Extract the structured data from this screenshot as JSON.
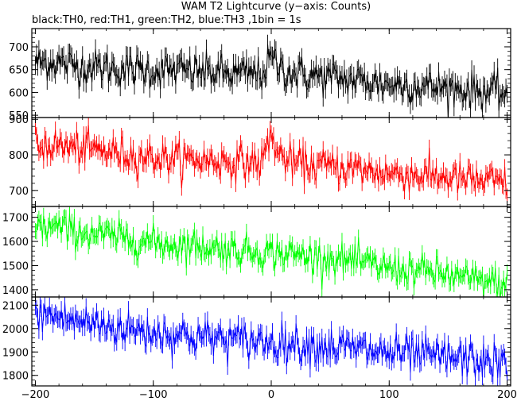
{
  "title": "WAM T2 Lightcurve (y−axis: Counts)",
  "subtitle": "black:TH0, red:TH1, green:TH2, blue:TH3 ,1bin = 1s",
  "chart_data": {
    "type": "line",
    "title": "WAM T2 Lightcurve (y−axis: Counts)",
    "subtitle": "black:TH0, red:TH1, green:TH2, blue:TH3 ,1bin = 1s",
    "xlim": [
      -203,
      203
    ],
    "x_ticks": [
      -200,
      -100,
      0,
      100,
      200
    ],
    "x_tick_labels": [
      "−200",
      "−100",
      "0",
      "100",
      "200"
    ],
    "bin_seconds": 1,
    "panels": [
      {
        "name": "TH0",
        "color": "#000000",
        "ylim": [
          545,
          740
        ],
        "y_ticks": [
          550,
          600,
          650,
          700
        ],
        "trend": [
          [
            -200,
            665
          ],
          [
            -185,
            668
          ],
          [
            -170,
            660
          ],
          [
            -150,
            655
          ],
          [
            -120,
            650
          ],
          [
            -90,
            648
          ],
          [
            -60,
            646
          ],
          [
            -30,
            640
          ],
          [
            -8,
            640
          ],
          [
            0,
            675
          ],
          [
            8,
            655
          ],
          [
            20,
            640
          ],
          [
            60,
            630
          ],
          [
            100,
            618
          ],
          [
            140,
            612
          ],
          [
            170,
            605
          ],
          [
            200,
            598
          ]
        ],
        "noise_sd": 20
      },
      {
        "name": "TH1",
        "color": "#ff0000",
        "ylim": [
          655,
          905
        ],
        "y_ticks": [
          700,
          800,
          900
        ],
        "trend": [
          [
            -200,
            825
          ],
          [
            -185,
            828
          ],
          [
            -170,
            820
          ],
          [
            -150,
            815
          ],
          [
            -120,
            800
          ],
          [
            -90,
            790
          ],
          [
            -60,
            785
          ],
          [
            -30,
            780
          ],
          [
            -8,
            778
          ],
          [
            0,
            860
          ],
          [
            6,
            800
          ],
          [
            20,
            775
          ],
          [
            60,
            765
          ],
          [
            100,
            748
          ],
          [
            140,
            740
          ],
          [
            170,
            728
          ],
          [
            200,
            720
          ]
        ],
        "noise_sd": 24
      },
      {
        "name": "TH2",
        "color": "#00ff00",
        "ylim": [
          1370,
          1745
        ],
        "y_ticks": [
          1400,
          1500,
          1600,
          1700
        ],
        "trend": [
          [
            -200,
            1655
          ],
          [
            -185,
            1660
          ],
          [
            -170,
            1645
          ],
          [
            -150,
            1630
          ],
          [
            -120,
            1610
          ],
          [
            -90,
            1590
          ],
          [
            -60,
            1580
          ],
          [
            -30,
            1565
          ],
          [
            0,
            1555
          ],
          [
            20,
            1545
          ],
          [
            60,
            1525
          ],
          [
            100,
            1490
          ],
          [
            140,
            1470
          ],
          [
            170,
            1440
          ],
          [
            200,
            1420
          ]
        ],
        "noise_sd": 33
      },
      {
        "name": "TH3",
        "color": "#0000ff",
        "ylim": [
          1755,
          2135
        ],
        "y_ticks": [
          1800,
          1900,
          2000,
          2100
        ],
        "trend": [
          [
            -200,
            2060
          ],
          [
            -185,
            2055
          ],
          [
            -170,
            2035
          ],
          [
            -150,
            2020
          ],
          [
            -120,
            1995
          ],
          [
            -90,
            1980
          ],
          [
            -60,
            1965
          ],
          [
            -30,
            1950
          ],
          [
            0,
            1945
          ],
          [
            20,
            1935
          ],
          [
            60,
            1920
          ],
          [
            100,
            1895
          ],
          [
            140,
            1880
          ],
          [
            170,
            1865
          ],
          [
            200,
            1845
          ]
        ],
        "noise_sd": 40
      }
    ]
  }
}
